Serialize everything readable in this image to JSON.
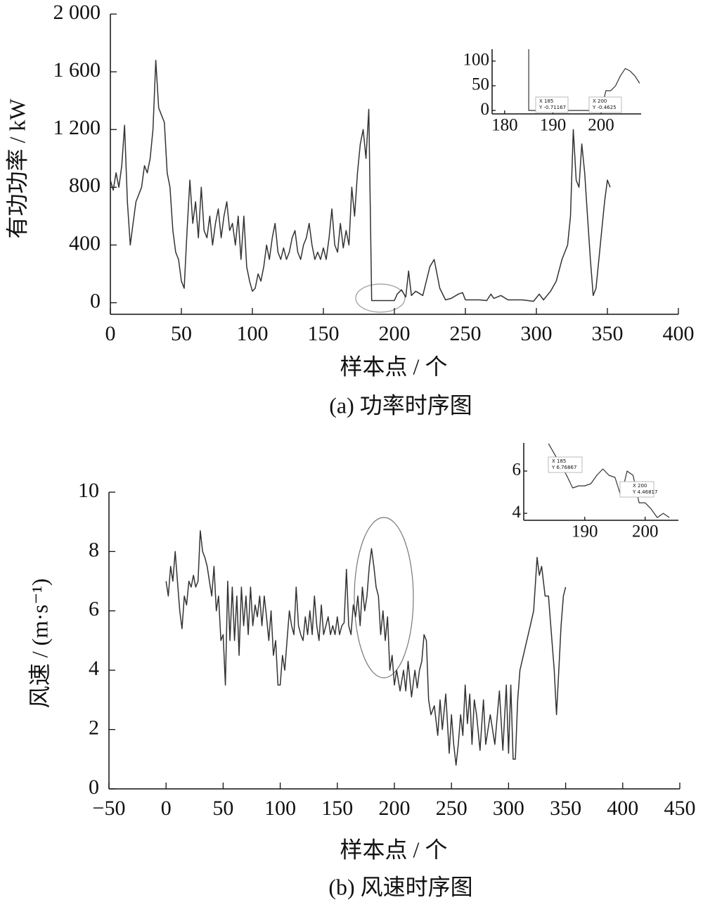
{
  "chart_data": [
    {
      "type": "line",
      "xlabel": "样本点 / 个",
      "ylabel": "有功功率 / kW",
      "caption": "(a)  功率时序图",
      "color": "#333333",
      "xlim": [
        0,
        400
      ],
      "ylim": [
        -80,
        2000
      ],
      "xticks": [
        0,
        50,
        100,
        150,
        200,
        250,
        300,
        350,
        400
      ],
      "yticks": [
        0,
        400,
        800,
        {
          "value": 1200,
          "label": "1 200"
        },
        {
          "value": 1600,
          "label": "1 600"
        },
        {
          "value": 2000,
          "label": "2 000"
        }
      ],
      "x": [
        0,
        2,
        4,
        6,
        8,
        10,
        12,
        14,
        16,
        18,
        20,
        22,
        24,
        26,
        28,
        30,
        32,
        34,
        36,
        38,
        40,
        42,
        44,
        46,
        48,
        50,
        52,
        54,
        56,
        58,
        60,
        62,
        64,
        66,
        68,
        70,
        72,
        74,
        76,
        78,
        80,
        82,
        84,
        86,
        88,
        90,
        92,
        94,
        96,
        98,
        100,
        102,
        104,
        106,
        108,
        110,
        112,
        114,
        116,
        118,
        120,
        122,
        124,
        126,
        128,
        130,
        132,
        134,
        136,
        138,
        140,
        142,
        144,
        146,
        148,
        150,
        152,
        154,
        156,
        158,
        160,
        162,
        164,
        166,
        168,
        170,
        172,
        174,
        176,
        178,
        180,
        182,
        184,
        190,
        196,
        200,
        202,
        205,
        208,
        210,
        212,
        215,
        220,
        225,
        228,
        232,
        236,
        240,
        245,
        248,
        250,
        260,
        265,
        268,
        270,
        275,
        280,
        290,
        298,
        302,
        305,
        310,
        314,
        318,
        322,
        324,
        326,
        328,
        330,
        332,
        334,
        336,
        338,
        340,
        342,
        344,
        346,
        348,
        350,
        352
      ],
      "values": [
        850,
        780,
        900,
        800,
        950,
        1230,
        700,
        400,
        550,
        700,
        750,
        800,
        950,
        900,
        1000,
        1200,
        1680,
        1350,
        1300,
        1250,
        900,
        800,
        500,
        350,
        300,
        150,
        100,
        500,
        850,
        550,
        700,
        450,
        800,
        500,
        450,
        600,
        400,
        550,
        650,
        450,
        600,
        700,
        500,
        550,
        400,
        600,
        300,
        600,
        250,
        150,
        80,
        100,
        200,
        150,
        250,
        400,
        300,
        450,
        550,
        350,
        300,
        380,
        300,
        350,
        450,
        500,
        350,
        300,
        400,
        450,
        550,
        400,
        300,
        350,
        300,
        380,
        300,
        450,
        650,
        400,
        350,
        550,
        380,
        500,
        400,
        800,
        600,
        900,
        1100,
        1200,
        1000,
        1340,
        15,
        15,
        15,
        15,
        60,
        90,
        40,
        220,
        50,
        80,
        50,
        250,
        300,
        100,
        20,
        30,
        60,
        70,
        20,
        20,
        15,
        60,
        30,
        50,
        20,
        20,
        10,
        60,
        20,
        80,
        150,
        300,
        400,
        600,
        1200,
        850,
        800,
        1100,
        900,
        600,
        300,
        50,
        100,
        300,
        500,
        700,
        850,
        800
      ]
    },
    {
      "type": "line",
      "color": "#333333",
      "xlim": [
        177.4,
        208.3
      ],
      "ylim": [
        -7,
        124
      ],
      "xticks": [
        180,
        190,
        200
      ],
      "yticks": [
        0,
        50,
        100
      ],
      "x": [
        185,
        185,
        190,
        195,
        200,
        201,
        202,
        203,
        204,
        205,
        206,
        207,
        208
      ],
      "values": [
        124,
        0,
        0,
        0,
        0,
        40,
        40,
        50,
        70,
        85,
        80,
        70,
        55
      ],
      "annotations": [
        "X 185",
        "Y -0.71167",
        "X 200",
        "Y -0.4625"
      ]
    },
    {
      "type": "line",
      "xlabel": "样本点 / 个",
      "ylabel": "风速 / (m·s⁻¹)",
      "caption": "(b)  风速时序图",
      "color": "#333333",
      "xlim": [
        -50,
        450
      ],
      "ylim": [
        0,
        10
      ],
      "xticks": [
        {
          "value": -50,
          "label": "−50"
        },
        0,
        50,
        100,
        150,
        200,
        250,
        300,
        350,
        400,
        450
      ],
      "yticks": [
        0,
        2,
        4,
        6,
        8,
        10
      ],
      "x": [
        0,
        2,
        4,
        6,
        8,
        10,
        12,
        14,
        16,
        18,
        20,
        22,
        24,
        26,
        28,
        30,
        32,
        34,
        36,
        38,
        40,
        42,
        44,
        46,
        48,
        50,
        52,
        54,
        56,
        58,
        60,
        62,
        64,
        66,
        68,
        70,
        72,
        74,
        76,
        78,
        80,
        82,
        84,
        86,
        88,
        90,
        92,
        94,
        96,
        98,
        100,
        102,
        104,
        106,
        108,
        110,
        112,
        114,
        116,
        118,
        120,
        122,
        124,
        126,
        128,
        130,
        132,
        134,
        136,
        138,
        140,
        142,
        144,
        146,
        148,
        150,
        152,
        154,
        156,
        158,
        160,
        162,
        164,
        166,
        168,
        170,
        172,
        174,
        176,
        178,
        180,
        182,
        184,
        186,
        188,
        190,
        192,
        194,
        196,
        198,
        200,
        202,
        205,
        208,
        210,
        212,
        215,
        218,
        220,
        222,
        224,
        226,
        228,
        230,
        232,
        235,
        238,
        240,
        242,
        245,
        248,
        250,
        252,
        254,
        256,
        258,
        260,
        262,
        264,
        266,
        268,
        270,
        272,
        275,
        278,
        280,
        284,
        288,
        292,
        295,
        298,
        300,
        302,
        304,
        306,
        308,
        310,
        313,
        316,
        319,
        322,
        325,
        327,
        329,
        332,
        335,
        338,
        340,
        342,
        344,
        346,
        348,
        350
      ],
      "values": [
        7,
        6.5,
        7.5,
        7,
        8,
        7,
        6,
        5.4,
        6.5,
        6.2,
        7,
        6.8,
        7.2,
        6.8,
        7,
        8.7,
        8,
        7.8,
        7.5,
        7,
        6.5,
        7.5,
        6,
        6.5,
        5,
        5.2,
        3.5,
        7,
        5,
        6.8,
        5,
        6.5,
        4.5,
        6.8,
        5.5,
        6.5,
        5.2,
        6.8,
        5.5,
        6.2,
        5.8,
        6.5,
        5.5,
        6.5,
        5.8,
        5,
        6,
        4.5,
        5,
        3.5,
        3.5,
        4.5,
        4,
        5,
        6,
        5.5,
        5.2,
        6.8,
        5.5,
        5.2,
        5,
        5.8,
        5.2,
        6,
        5.2,
        6.5,
        5.5,
        5,
        6.2,
        5.2,
        5.5,
        5.8,
        5.2,
        5.5,
        5.2,
        5.8,
        5.2,
        5.5,
        5.6,
        7.4,
        5.5,
        5.2,
        6.2,
        5.8,
        6.5,
        5.5,
        6.8,
        6,
        6.5,
        7.5,
        8.1,
        7.5,
        6.8,
        6.5,
        5.2,
        6,
        5,
        5.8,
        4,
        4.5,
        3.5,
        4,
        3.3,
        4,
        3.3,
        4.3,
        3.1,
        4,
        3.4,
        4,
        4.3,
        5.2,
        5,
        3,
        2.5,
        2.8,
        1.8,
        3,
        2,
        3.2,
        1.2,
        2.5,
        1.5,
        0.8,
        1.5,
        2.5,
        1.8,
        3.5,
        2.2,
        3.2,
        1.5,
        3,
        2.5,
        1.3,
        3,
        1.5,
        2.5,
        1.5,
        3.3,
        1.3,
        3.5,
        1.2,
        3.5,
        1,
        1,
        3,
        4,
        4.5,
        5,
        5.5,
        6,
        7.8,
        7.2,
        7.5,
        6.5,
        6.5,
        5,
        4,
        2.5,
        4,
        5.5,
        6.5,
        6.8
      ]
    },
    {
      "type": "line",
      "color": "#333333",
      "xlim": [
        179.9,
        205.5
      ],
      "ylim": [
        3.67,
        7.33
      ],
      "xticks": [
        190,
        200
      ],
      "yticks": [
        4,
        6
      ],
      "x": [
        184,
        185,
        186,
        187,
        188,
        189,
        190,
        191,
        192,
        193,
        194,
        195,
        196,
        197,
        198,
        199,
        200,
        201,
        202,
        203,
        204
      ],
      "values": [
        7.3,
        6.8,
        6.3,
        5.8,
        5.2,
        5.3,
        5.3,
        5.4,
        5.8,
        6.1,
        5.8,
        5.7,
        4.8,
        6,
        5.8,
        4.5,
        4.5,
        4.2,
        3.8,
        4,
        3.8
      ],
      "annotations": [
        "X 185",
        "Y 6.76867",
        "X 200",
        "Y 4.46817"
      ]
    }
  ]
}
